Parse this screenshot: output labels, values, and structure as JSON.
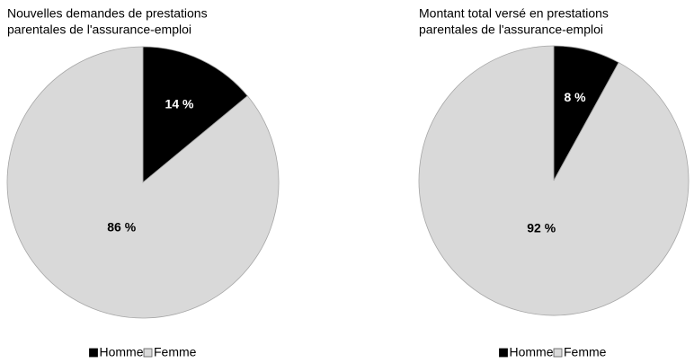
{
  "chart_data": [
    {
      "type": "pie",
      "title": [
        "Nouvelles demandes de prestations",
        "parentales de l'assurance-emploi"
      ],
      "categories": [
        "Homme",
        "Femme"
      ],
      "values": [
        14,
        86
      ],
      "value_labels": [
        "14 %",
        "86 %"
      ],
      "colors": [
        "#000000",
        "#d9d9d9"
      ]
    },
    {
      "type": "pie",
      "title": [
        "Montant total versé en prestations",
        "parentales de l'assurance-emploi"
      ],
      "categories": [
        "Homme",
        "Femme"
      ],
      "values": [
        8,
        92
      ],
      "value_labels": [
        "8 %",
        "92 %"
      ],
      "colors": [
        "#000000",
        "#d9d9d9"
      ]
    }
  ]
}
